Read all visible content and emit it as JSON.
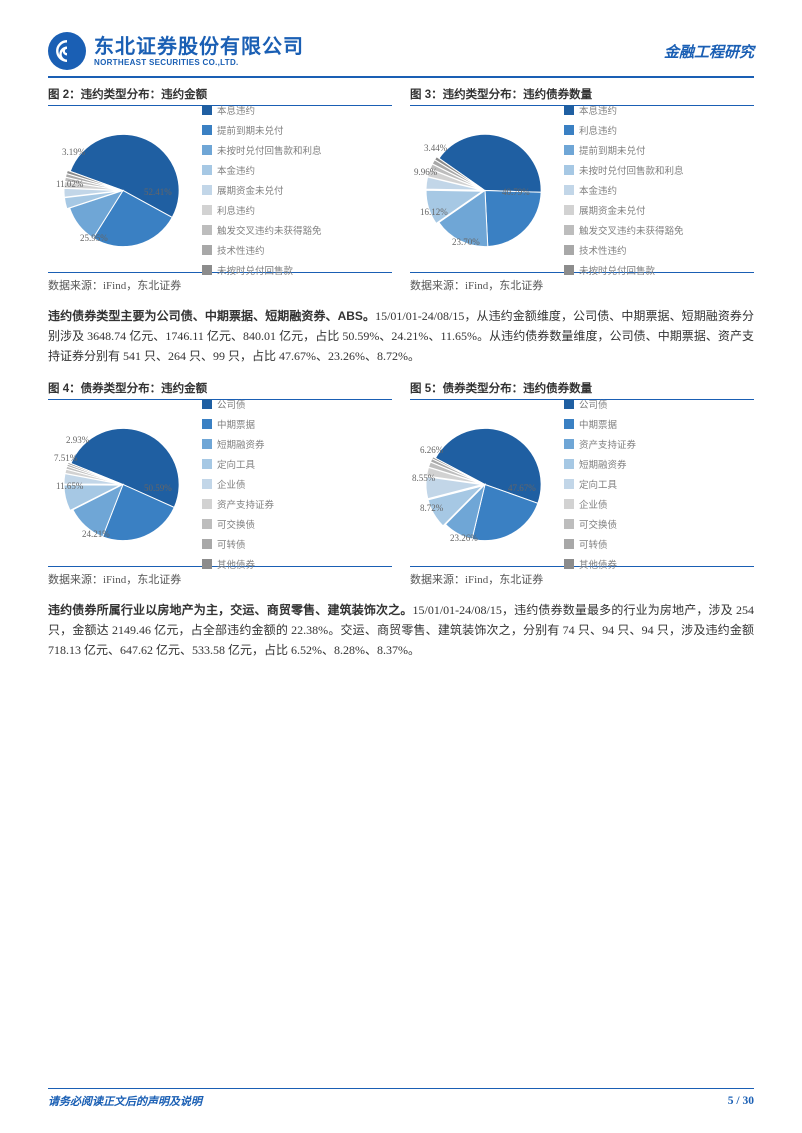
{
  "header": {
    "company_cn": "东北证券股份有限公司",
    "company_en": "NORTHEAST SECURITIES CO.,LTD.",
    "right_title": "金融工程研究"
  },
  "legend_colors": [
    "#1f5fa2",
    "#3a80c3",
    "#6fa6d6",
    "#a6c8e4",
    "#c2d6e8",
    "#d2d2d2",
    "#bdbdbd",
    "#a8a8a8",
    "#8c8c8c"
  ],
  "chart2": {
    "title": "图 2：违约类型分布：违约金额",
    "legend": [
      "本息违约",
      "提前到期未兑付",
      "未按时兑付回售款和利息",
      "本金违约",
      "展期资金未兑付",
      "利息违约",
      "触发交叉违约未获得豁免",
      "技术性违约",
      "未按时兑付回售款"
    ],
    "pct_labels": [
      "52.41%",
      "25.95%",
      "11.02%",
      "3.19%"
    ],
    "source": "数据来源：iFind，东北证券"
  },
  "chart3": {
    "title": "图 3：违约类型分布：违约债券数量",
    "legend": [
      "本息违约",
      "利息违约",
      "提前到期未兑付",
      "未按时兑付回售款和利息",
      "本金违约",
      "展期资金未兑付",
      "触发交叉违约未获得豁免",
      "技术性违约",
      "未按时兑付回售款"
    ],
    "pct_labels": [
      "40.79%",
      "23.70%",
      "16.12%",
      "9.96%",
      "3.44%"
    ],
    "source": "数据来源：iFind，东北证券"
  },
  "para1_bold": "违约债券类型主要为公司债、中期票据、短期融资券、ABS。",
  "para1_rest": "15/01/01-24/08/15，从违约金额维度，公司债、中期票据、短期融资券分别涉及 3648.74 亿元、1746.11 亿元、840.01 亿元，占比 50.59%、24.21%、11.65%。从违约债券数量维度，公司债、中期票据、资产支持证券分别有 541 只、264 只、99 只，占比 47.67%、23.26%、8.72%。",
  "chart4": {
    "title": "图 4：债券类型分布：违约金额",
    "legend": [
      "公司债",
      "中期票据",
      "短期融资券",
      "定向工具",
      "企业债",
      "资产支持证券",
      "可交换债",
      "可转债",
      "其他债券"
    ],
    "pct_labels": [
      "50.59%",
      "24.21%",
      "11.65%",
      "7.51%",
      "2.93%"
    ],
    "source": "数据来源：iFind，东北证券"
  },
  "chart5": {
    "title": "图 5：债券类型分布：违约债券数量",
    "legend": [
      "公司债",
      "中期票据",
      "资产支持证券",
      "短期融资券",
      "定向工具",
      "企业债",
      "可交换债",
      "可转债",
      "其他债券"
    ],
    "pct_labels": [
      "47.67%",
      "23.26%",
      "8.72%",
      "8.55%",
      "6.26%"
    ],
    "source": "数据来源：iFind，东北证券"
  },
  "para2_bold": "违约债券所属行业以房地产为主，交运、商贸零售、建筑装饰次之。",
  "para2_rest": "15/01/01-24/08/15，违约债券数量最多的行业为房地产，涉及 254 只，金额达 2149.46 亿元，占全部违约金额的 22.38%。交运、商贸零售、建筑装饰次之，分别有 74 只、94 只、94 只，涉及违约金额 718.13 亿元、647.62 亿元、533.58 亿元，占比 6.52%、8.28%、8.37%。",
  "footer": {
    "disclaimer": "请务必阅读正文后的声明及说明",
    "page": "5 / 30"
  },
  "pies": {
    "chart2": {
      "values": [
        52.41,
        25.95,
        11.02,
        3.19,
        2.5,
        1.8,
        1.2,
        1.0,
        0.93
      ],
      "start": -70
    },
    "chart3": {
      "values": [
        40.79,
        23.7,
        16.12,
        9.96,
        3.44,
        2.2,
        1.5,
        1.3,
        0.99
      ],
      "start": -55
    },
    "chart4": {
      "values": [
        50.59,
        24.21,
        11.65,
        7.51,
        2.93,
        1.2,
        0.8,
        0.6,
        0.51
      ],
      "start": -68
    },
    "chart5": {
      "values": [
        47.67,
        23.26,
        8.72,
        8.55,
        6.26,
        2.5,
        1.5,
        1.0,
        0.54
      ],
      "start": -62
    }
  },
  "labels_pos": {
    "chart2": [
      [
        96,
        72
      ],
      [
        32,
        118
      ],
      [
        8,
        64
      ],
      [
        14,
        32
      ]
    ],
    "chart3": [
      [
        92,
        72
      ],
      [
        42,
        122
      ],
      [
        10,
        92
      ],
      [
        4,
        52
      ],
      [
        14,
        28
      ]
    ],
    "chart4": [
      [
        96,
        74
      ],
      [
        34,
        120
      ],
      [
        8,
        72
      ],
      [
        6,
        44
      ],
      [
        18,
        26
      ]
    ],
    "chart5": [
      [
        98,
        74
      ],
      [
        40,
        124
      ],
      [
        10,
        94
      ],
      [
        2,
        64
      ],
      [
        10,
        36
      ]
    ]
  }
}
